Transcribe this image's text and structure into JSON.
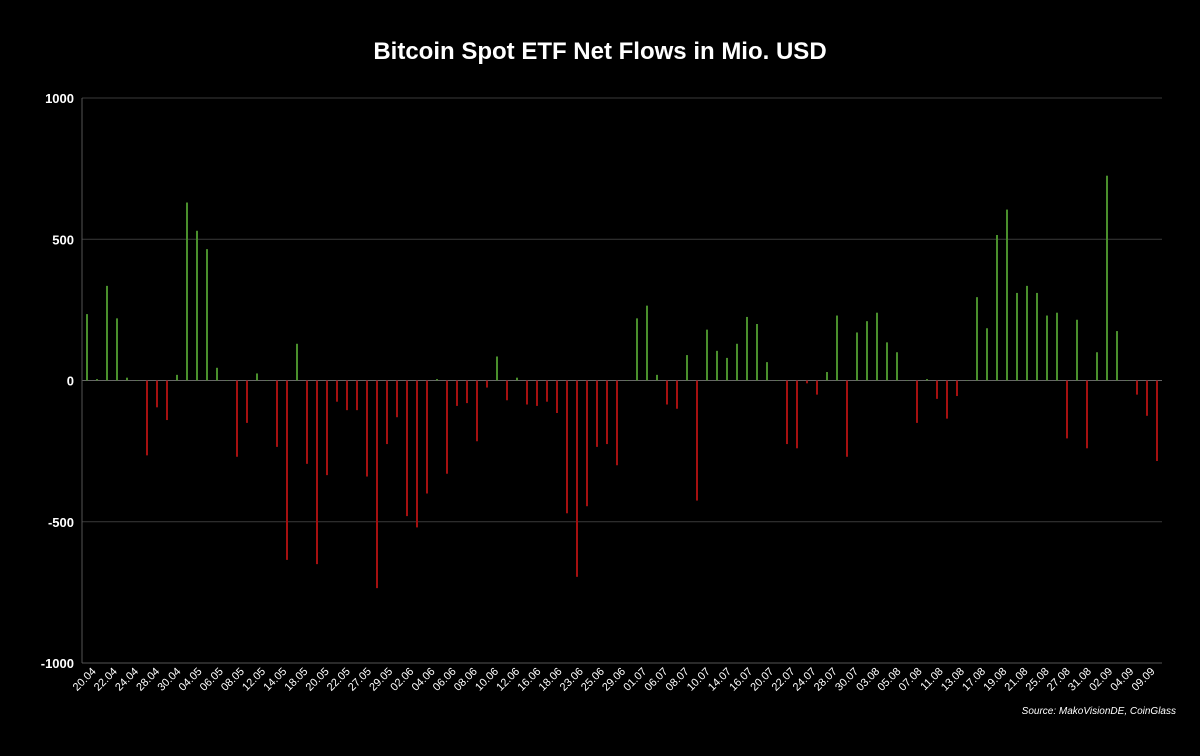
{
  "title": "Bitcoin Spot ETF Net Flows in Mio. USD",
  "source": "Source: MakoVisionDE, CoinGlass",
  "colors": {
    "positive": "#4a8f2c",
    "negative": "#a51010",
    "grid": "#3a3a3a",
    "background": "#000000"
  },
  "chart_data": {
    "type": "bar",
    "title": "Bitcoin Spot ETF Net Flows in Mio. USD",
    "ylim": [
      -1000,
      1000
    ],
    "yticks": [
      1000,
      500,
      0,
      -500,
      -1000
    ],
    "grid": true,
    "tick_labels": [
      "20.04",
      "22.04",
      "24.04",
      "28.04",
      "30.04",
      "04.05",
      "06.05",
      "08.05",
      "12.05",
      "14.05",
      "18.05",
      "20.05",
      "22.05",
      "27.05",
      "29.05",
      "02.06",
      "04.06",
      "06.06",
      "08.06",
      "10.06",
      "12.06",
      "16.06",
      "18.06",
      "23.06",
      "25.06",
      "29.06",
      "01.07",
      "06.07",
      "08.07",
      "10.07",
      "14.07",
      "16.07",
      "20.07",
      "22.07",
      "24.07",
      "28.07",
      "30.07",
      "03.08",
      "05.08",
      "07.08",
      "11.08",
      "13.08",
      "17.08",
      "19.08",
      "21.08",
      "25.08",
      "27.08",
      "31.08",
      "02.09",
      "04.09",
      "09.09"
    ],
    "values": [
      235,
      5,
      335,
      220,
      10,
      0,
      -265,
      -95,
      -140,
      20,
      630,
      530,
      465,
      45,
      0,
      -270,
      -150,
      25,
      0,
      -235,
      -635,
      130,
      -295,
      -650,
      -335,
      -75,
      -105,
      -105,
      -340,
      -735,
      -225,
      -130,
      -480,
      -520,
      -400,
      5,
      -330,
      -90,
      -80,
      -215,
      -25,
      85,
      -70,
      10,
      -85,
      -90,
      -75,
      -115,
      -470,
      -695,
      -445,
      -235,
      -225,
      -300,
      0,
      220,
      265,
      20,
      -85,
      -100,
      90,
      -425,
      180,
      105,
      80,
      130,
      225,
      200,
      65,
      0,
      -225,
      -240,
      -10,
      -50,
      30,
      230,
      -270,
      170,
      210,
      240,
      135,
      100,
      0,
      -150,
      5,
      -65,
      -135,
      -55,
      0,
      295,
      185,
      515,
      605,
      310,
      335,
      310,
      230,
      240,
      -205,
      215,
      -240,
      100,
      725,
      175,
      0,
      -50,
      -125,
      -285
    ]
  }
}
